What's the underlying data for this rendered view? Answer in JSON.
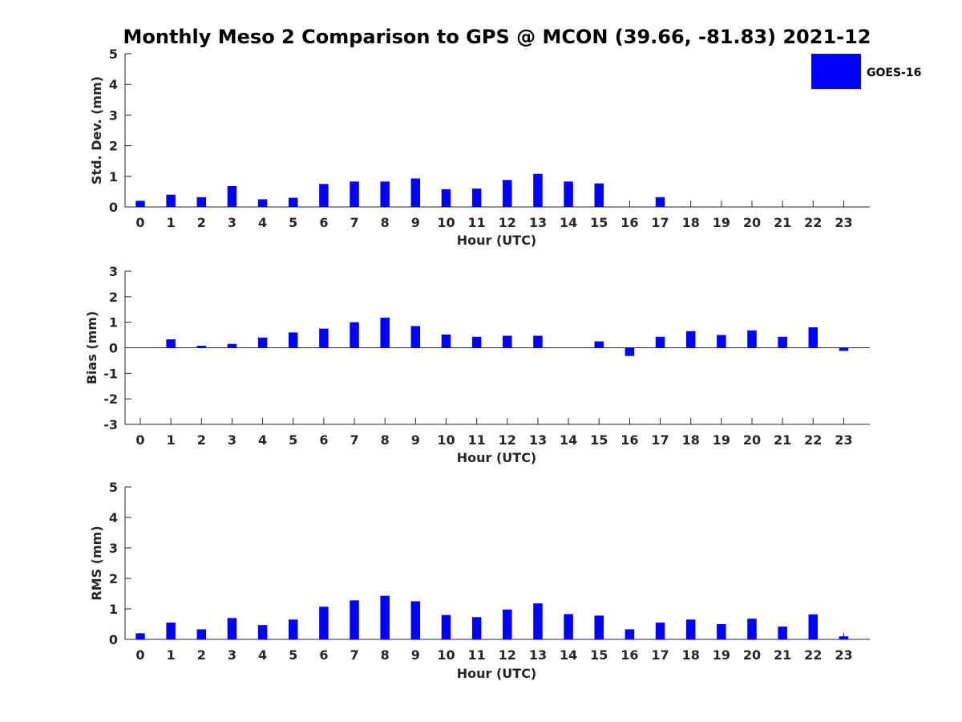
{
  "figure": {
    "title": "Monthly Meso 2 Comparison to GPS @ MCON (39.66, -81.83) 2021-12",
    "legend": {
      "label": "GOES-16",
      "color": "#0000ff",
      "location": "top-right"
    }
  },
  "chart_data": [
    {
      "type": "bar",
      "name": "std-dev",
      "title": "Monthly Meso 2 Comparison to GPS @ MCON (39.66, -81.83) 2021-12",
      "xlabel": "Hour (UTC)",
      "ylabel": "Std. Dev. (mm)",
      "ylim": [
        0,
        5
      ],
      "yticks": [
        0,
        1,
        2,
        3,
        4,
        5
      ],
      "categories": [
        "0",
        "1",
        "2",
        "3",
        "4",
        "5",
        "6",
        "7",
        "8",
        "9",
        "10",
        "11",
        "12",
        "13",
        "14",
        "15",
        "16",
        "17",
        "18",
        "19",
        "20",
        "21",
        "22",
        "23"
      ],
      "series": [
        {
          "name": "GOES-16",
          "color": "#0000ff",
          "values": [
            0.2,
            0.4,
            0.32,
            0.68,
            0.25,
            0.3,
            0.75,
            0.83,
            0.83,
            0.93,
            0.58,
            0.6,
            0.88,
            1.08,
            0.83,
            0.77,
            0,
            0.32,
            0,
            0,
            0,
            0,
            0,
            0
          ]
        }
      ]
    },
    {
      "type": "bar",
      "name": "bias",
      "xlabel": "Hour (UTC)",
      "ylabel": "Bias (mm)",
      "ylim": [
        -3,
        3
      ],
      "yticks": [
        -3,
        -2,
        -1,
        0,
        1,
        2,
        3
      ],
      "categories": [
        "0",
        "1",
        "2",
        "3",
        "4",
        "5",
        "6",
        "7",
        "8",
        "9",
        "10",
        "11",
        "12",
        "13",
        "14",
        "15",
        "16",
        "17",
        "18",
        "19",
        "20",
        "21",
        "22",
        "23"
      ],
      "series": [
        {
          "name": "GOES-16",
          "color": "#0000ff",
          "values": [
            0,
            0.33,
            0.08,
            0.15,
            0.4,
            0.6,
            0.75,
            1.0,
            1.18,
            0.85,
            0.52,
            0.43,
            0.47,
            0.47,
            0,
            0.25,
            -0.32,
            0.43,
            0.65,
            0.5,
            0.68,
            0.43,
            0.8,
            -0.12
          ]
        }
      ]
    },
    {
      "type": "bar",
      "name": "rms",
      "xlabel": "Hour (UTC)",
      "ylabel": "RMS (mm)",
      "ylim": [
        0,
        5
      ],
      "yticks": [
        0,
        1,
        2,
        3,
        4,
        5
      ],
      "categories": [
        "0",
        "1",
        "2",
        "3",
        "4",
        "5",
        "6",
        "7",
        "8",
        "9",
        "10",
        "11",
        "12",
        "13",
        "14",
        "15",
        "16",
        "17",
        "18",
        "19",
        "20",
        "21",
        "22",
        "23"
      ],
      "series": [
        {
          "name": "GOES-16",
          "color": "#0000ff",
          "values": [
            0.2,
            0.55,
            0.33,
            0.7,
            0.47,
            0.65,
            1.07,
            1.28,
            1.43,
            1.25,
            0.8,
            0.73,
            0.98,
            1.18,
            0.83,
            0.78,
            0.33,
            0.55,
            0.65,
            0.5,
            0.68,
            0.42,
            0.82,
            0.1
          ]
        }
      ]
    }
  ]
}
